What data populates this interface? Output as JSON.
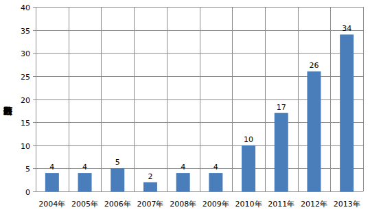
{
  "chart_data": {
    "type": "bar",
    "y_label": "出願件数",
    "categories": [
      "2004年",
      "2005年",
      "2006年",
      "2007年",
      "2008年",
      "2009年",
      "2010年",
      "2011年",
      "2012年",
      "2013年"
    ],
    "values": [
      4,
      4,
      5,
      2,
      4,
      4,
      10,
      17,
      26,
      34
    ],
    "color": "#4a7ebb",
    "ylim": [
      0,
      40
    ],
    "yticks": [
      0,
      5,
      10,
      15,
      20,
      25,
      30,
      35,
      40
    ],
    "grid": true,
    "data_labels": true
  }
}
